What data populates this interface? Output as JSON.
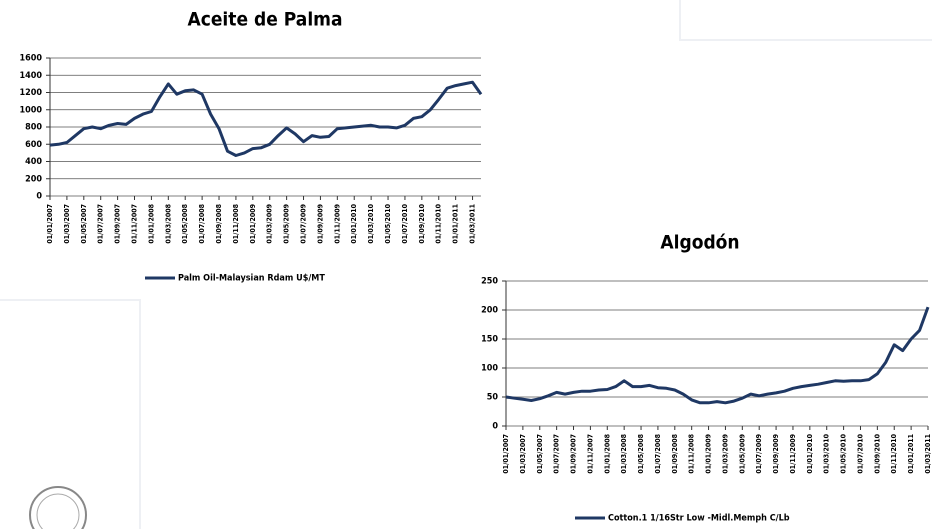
{
  "chart_data": [
    {
      "type": "line",
      "title": "Aceite de Palma",
      "categories": [
        "01/01/2007",
        null,
        "01/03/2007",
        null,
        "01/05/2007",
        null,
        "01/07/2007",
        null,
        "01/09/2007",
        null,
        "01/11/2007",
        null,
        "01/01/2008",
        null,
        "01/03/2008",
        null,
        "01/05/2008",
        null,
        "01/07/2008",
        null,
        "01/09/2008",
        null,
        "01/11/2008",
        null,
        "01/01/2009",
        null,
        "01/03/2009",
        null,
        "01/05/2009",
        null,
        "01/07/2009",
        null,
        "01/09/2009",
        null,
        "01/11/2009",
        null,
        "01/01/2010",
        null,
        "01/03/2010",
        null,
        "01/05/2010",
        null,
        "01/07/2010",
        null,
        "01/09/2010",
        null,
        "01/11/2010",
        null,
        "01/01/2011",
        null,
        "01/03/2011",
        null
      ],
      "series": [
        {
          "name": "Palm Oil-Malaysian Rdam U$/MT",
          "color": "#1f3864",
          "values": [
            590,
            600,
            620,
            700,
            780,
            800,
            780,
            820,
            840,
            830,
            900,
            950,
            980,
            1150,
            1300,
            1180,
            1220,
            1230,
            1180,
            950,
            780,
            520,
            470,
            500,
            550,
            560,
            600,
            700,
            790,
            720,
            630,
            700,
            680,
            690,
            780,
            790,
            800,
            810,
            820,
            800,
            800,
            790,
            820,
            900,
            920,
            1000,
            1120,
            1250,
            1280,
            1300,
            1320,
            1180
          ]
        }
      ],
      "ylim": [
        0,
        1600
      ],
      "yticks": [
        0,
        200,
        400,
        600,
        800,
        1000,
        1200,
        1400,
        1600
      ],
      "grid": true
    },
    {
      "type": "line",
      "title": "Algodón",
      "categories": [
        "01/01/2007",
        null,
        "01/03/2007",
        null,
        "01/05/2007",
        null,
        "01/07/2007",
        null,
        "01/09/2007",
        null,
        "01/11/2007",
        null,
        "01/01/2008",
        null,
        "01/03/2008",
        null,
        "01/05/2008",
        null,
        "01/07/2008",
        null,
        "01/09/2008",
        null,
        "01/11/2008",
        null,
        "01/01/2009",
        null,
        "01/03/2009",
        null,
        "01/05/2009",
        null,
        "01/07/2009",
        null,
        "01/09/2009",
        null,
        "01/11/2009",
        null,
        "01/01/2010",
        null,
        "01/03/2010",
        null,
        "01/05/2010",
        null,
        "01/07/2010",
        null,
        "01/09/2010",
        null,
        "01/11/2010",
        null,
        "01/01/2011",
        null,
        "01/03/2011"
      ],
      "series": [
        {
          "name": "Cotton.1 1/16Str Low -Midl.Memph C/Lb",
          "color": "#1f3864",
          "values": [
            50,
            48,
            46,
            44,
            47,
            52,
            58,
            55,
            58,
            60,
            60,
            62,
            63,
            68,
            78,
            68,
            68,
            70,
            66,
            65,
            62,
            55,
            45,
            40,
            40,
            42,
            40,
            43,
            48,
            55,
            52,
            55,
            57,
            60,
            65,
            68,
            70,
            72,
            75,
            78,
            77,
            78,
            78,
            80,
            90,
            110,
            140,
            130,
            150,
            165,
            205
          ]
        }
      ],
      "ylim": [
        0,
        250
      ],
      "yticks": [
        0,
        50,
        100,
        150,
        200,
        250
      ],
      "grid": true
    }
  ]
}
